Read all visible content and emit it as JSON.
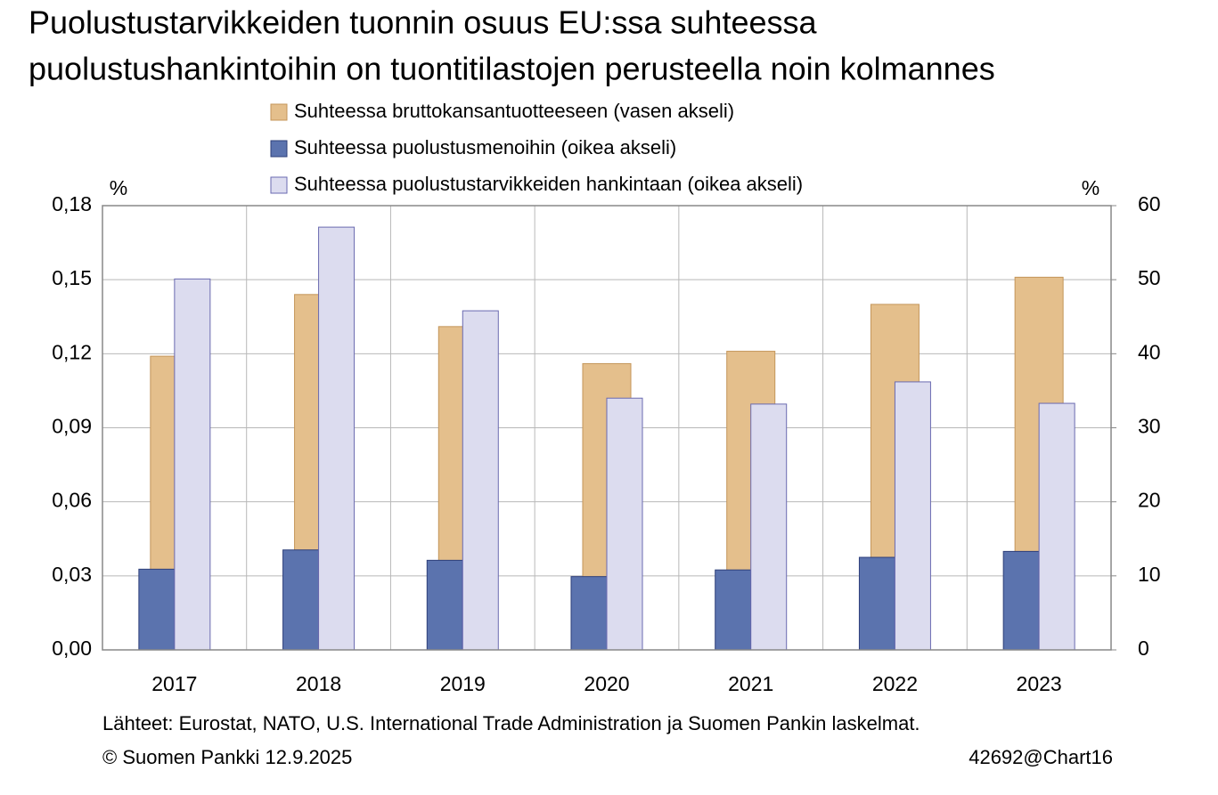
{
  "chart_data": {
    "type": "bar",
    "title": [
      "Puolustustarvikkeiden tuonnin osuus EU:ssa suhteessa",
      "puolustushankintoihin on tuontitilastojen perusteella noin kolmannes"
    ],
    "y_unit": "%",
    "y2_unit": "%",
    "categories": [
      "2017",
      "2018",
      "2019",
      "2020",
      "2021",
      "2022",
      "2023"
    ],
    "series": [
      {
        "name": "Suhteessa bruttokansantuotteeseen (vasen akseli)",
        "color": "#e4bf8c",
        "axis": "y",
        "values": [
          0.119,
          0.144,
          0.131,
          0.116,
          0.121,
          0.14,
          0.151
        ]
      },
      {
        "name": "Suhteessa puolustusmenoihin (oikea akseli)",
        "color": "#5b73ae",
        "axis": "y2",
        "values": [
          10.9,
          13.5,
          12.1,
          9.9,
          10.8,
          12.5,
          13.3
        ]
      },
      {
        "name": "Suhteessa puolustustarvikkeiden hankintaan (oikea akseli)",
        "color": "#dcdcef",
        "axis": "y2",
        "values": [
          50.1,
          57.1,
          45.8,
          34.0,
          33.2,
          36.2,
          33.3
        ]
      }
    ],
    "ylim": [
      0,
      0.18
    ],
    "yticks": [
      {
        "value": 0,
        "label": "0,00"
      },
      {
        "value": 0.03,
        "label": "0,03"
      },
      {
        "value": 0.06,
        "label": "0,06"
      },
      {
        "value": 0.09,
        "label": "0,09"
      },
      {
        "value": 0.12,
        "label": "0,12"
      },
      {
        "value": 0.15,
        "label": "0,15"
      },
      {
        "value": 0.18,
        "label": "0,18"
      }
    ],
    "y2lim": [
      0,
      60
    ],
    "y2ticks": [
      0,
      10,
      20,
      30,
      40,
      50,
      60
    ],
    "grid": true,
    "source": "Lähteet: Eurostat, NATO, U.S. International Trade Administration ja Suomen Pankin laskelmat.",
    "copyright": "© Suomen Pankki 12.9.2025",
    "chart_id": "42692@Chart16"
  }
}
